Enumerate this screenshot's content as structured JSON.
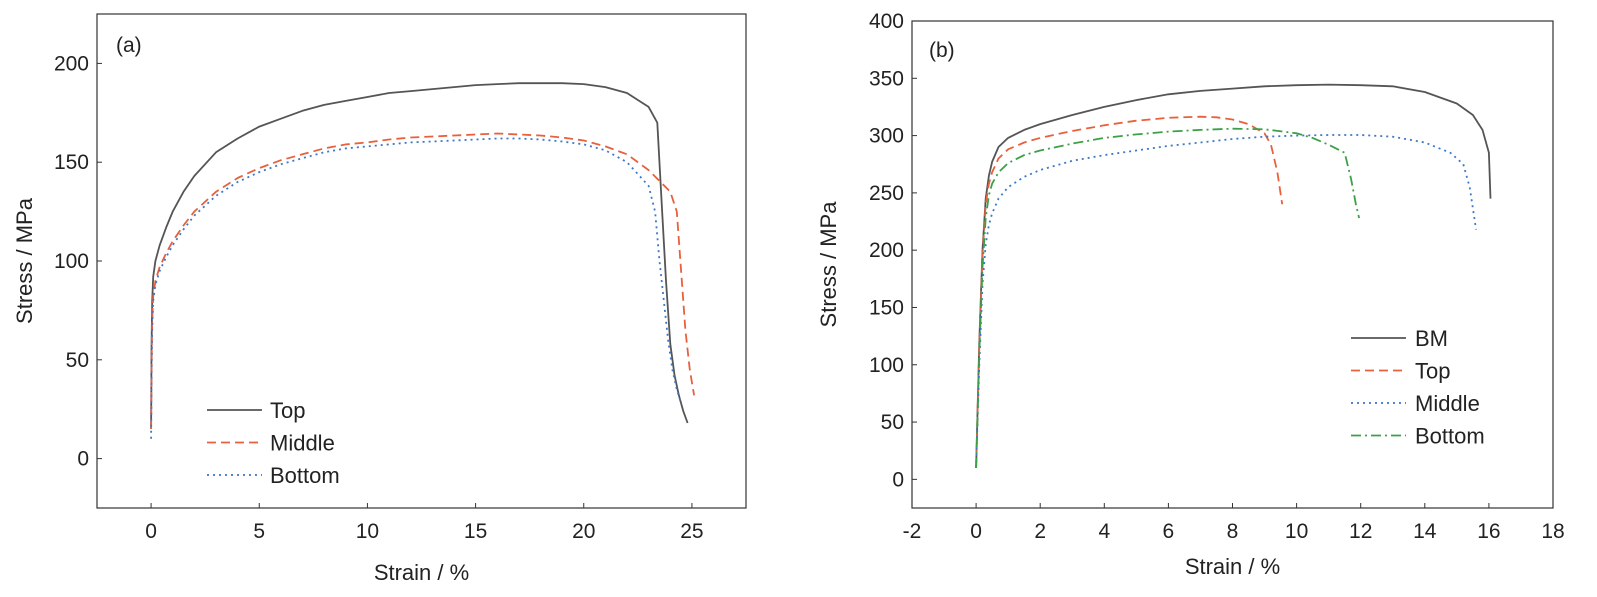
{
  "chart_data": [
    {
      "type": "line",
      "panel_label": "(a)",
      "xlabel": "Strain / %",
      "ylabel": "Stress / MPa",
      "xlim": [
        -2.5,
        27.5
      ],
      "ylim": [
        -25,
        225
      ],
      "xticks": [
        0,
        5,
        10,
        15,
        20,
        25
      ],
      "xtick_labels": [
        "0",
        "5",
        "10",
        "15",
        "20",
        "25"
      ],
      "yticks": [
        0,
        50,
        100,
        150,
        200
      ],
      "ytick_labels": [
        "0",
        "50",
        "100",
        "150",
        "200"
      ],
      "grid": false,
      "legend_position": "bottom-left",
      "series": [
        {
          "name": "Top",
          "color": "#555555",
          "style": "solid",
          "x": [
            0,
            0.02,
            0.05,
            0.1,
            0.2,
            0.4,
            0.7,
            1,
            1.5,
            2,
            3,
            4,
            5,
            6,
            7,
            8,
            9,
            10,
            11,
            12,
            13,
            14,
            15,
            16,
            17,
            18,
            19,
            20,
            21,
            22,
            23,
            23.4,
            23.6,
            23.8,
            24,
            24.2,
            24.4,
            24.6,
            24.8
          ],
          "y": [
            15,
            55,
            80,
            92,
            100,
            108,
            117,
            125,
            135,
            143,
            155,
            162,
            168,
            172,
            176,
            179,
            181,
            183,
            185,
            186,
            187,
            188,
            189,
            189.5,
            190,
            190,
            190,
            189.5,
            188,
            185,
            178,
            170,
            130,
            90,
            58,
            42,
            32,
            24,
            18
          ]
        },
        {
          "name": "Middle",
          "color": "#e8603c",
          "style": "dashed",
          "x": [
            0,
            0.02,
            0.05,
            0.1,
            0.2,
            0.4,
            0.7,
            1,
            1.5,
            2,
            3,
            4,
            5,
            6,
            7,
            8,
            9,
            10,
            11,
            12,
            13,
            14,
            15,
            16,
            17,
            18,
            19,
            20,
            21,
            22,
            23,
            24,
            24.3,
            24.5,
            24.7,
            24.9,
            25.1
          ],
          "y": [
            15,
            45,
            70,
            82,
            90,
            97,
            104,
            110,
            118,
            125,
            135,
            142,
            147,
            151,
            154,
            157,
            159,
            160,
            161.5,
            162.5,
            163,
            163.5,
            164,
            164.5,
            164,
            163.5,
            162.5,
            161,
            158,
            154,
            146,
            135,
            125,
            95,
            65,
            45,
            32
          ]
        },
        {
          "name": "Bottom",
          "color": "#3c78c8",
          "style": "dotted",
          "x": [
            0,
            0.02,
            0.05,
            0.1,
            0.2,
            0.4,
            0.7,
            1,
            1.5,
            2,
            3,
            4,
            5,
            6,
            7,
            8,
            9,
            10,
            11,
            12,
            13,
            14,
            15,
            16,
            17,
            18,
            19,
            20,
            21,
            22,
            23,
            23.3,
            23.5,
            23.7,
            23.9,
            24.1,
            24.3,
            24.5
          ],
          "y": [
            10,
            40,
            65,
            80,
            88,
            95,
            102,
            108,
            116,
            123,
            133,
            140,
            145,
            149,
            152,
            155,
            157,
            158,
            159,
            160,
            160.5,
            161,
            161.5,
            162,
            162,
            161.5,
            160.5,
            159,
            156,
            150,
            138,
            125,
            100,
            80,
            60,
            45,
            35,
            28
          ]
        }
      ]
    },
    {
      "type": "line",
      "panel_label": "(b)",
      "xlabel": "Strain / %",
      "ylabel": "Stress / MPa",
      "xlim": [
        -2,
        18
      ],
      "ylim": [
        -25,
        400
      ],
      "xticks": [
        -2,
        0,
        2,
        4,
        6,
        8,
        10,
        12,
        14,
        16,
        18
      ],
      "xtick_labels": [
        "-2",
        "0",
        "2",
        "4",
        "6",
        "8",
        "10",
        "12",
        "14",
        "16",
        "18"
      ],
      "yticks": [
        0,
        50,
        100,
        150,
        200,
        250,
        300,
        350,
        400
      ],
      "ytick_labels": [
        "0",
        "50",
        "100",
        "150",
        "200",
        "250",
        "300",
        "350",
        "400"
      ],
      "grid": false,
      "legend_position": "bottom-right",
      "series": [
        {
          "name": "BM",
          "color": "#555555",
          "style": "solid",
          "x": [
            0,
            0.1,
            0.2,
            0.3,
            0.4,
            0.5,
            0.7,
            1,
            1.5,
            2,
            3,
            4,
            5,
            6,
            7,
            8,
            9,
            10,
            11,
            12,
            13,
            14,
            15,
            15.5,
            15.8,
            16,
            16.05
          ],
          "y": [
            10,
            120,
            200,
            245,
            265,
            277,
            290,
            298,
            305,
            310,
            318,
            325,
            331,
            336,
            339,
            341,
            343,
            344,
            344.5,
            344,
            343,
            338,
            328,
            318,
            305,
            285,
            245
          ]
        },
        {
          "name": "Top",
          "color": "#e8603c",
          "style": "dashed",
          "x": [
            0,
            0.1,
            0.2,
            0.3,
            0.4,
            0.5,
            0.7,
            1,
            1.5,
            2,
            3,
            4,
            5,
            6,
            7,
            7.5,
            8,
            8.5,
            9,
            9.2,
            9.4,
            9.55
          ],
          "y": [
            10,
            115,
            195,
            240,
            258,
            268,
            280,
            288,
            294,
            298,
            304,
            309,
            313,
            315.5,
            316.5,
            316,
            314,
            310,
            302,
            292,
            268,
            240
          ]
        },
        {
          "name": "Middle",
          "color": "#3c78c8",
          "style": "dotted",
          "x": [
            0,
            0.1,
            0.2,
            0.3,
            0.4,
            0.5,
            0.7,
            1,
            1.5,
            2,
            3,
            4,
            5,
            6,
            7,
            8,
            9,
            10,
            11,
            12,
            13,
            14,
            14.8,
            15.2,
            15.4,
            15.6
          ],
          "y": [
            10,
            100,
            170,
            205,
            222,
            232,
            245,
            255,
            264,
            270,
            278,
            283,
            287,
            291,
            294,
            297,
            299,
            300,
            300.5,
            300.5,
            299,
            294,
            285,
            275,
            255,
            218
          ]
        },
        {
          "name": "Bottom",
          "color": "#3ca048",
          "style": "dashdot",
          "x": [
            0,
            0.1,
            0.2,
            0.3,
            0.4,
            0.5,
            0.7,
            1,
            1.5,
            2,
            3,
            4,
            5,
            6,
            7,
            8,
            9,
            10,
            10.5,
            11,
            11.5,
            11.7,
            11.85,
            11.95
          ],
          "y": [
            10,
            110,
            185,
            228,
            248,
            258,
            268,
            276,
            283,
            287,
            293,
            298,
            301,
            303.5,
            305,
            306,
            305.5,
            302,
            298,
            292,
            285,
            262,
            240,
            228
          ]
        }
      ]
    }
  ]
}
